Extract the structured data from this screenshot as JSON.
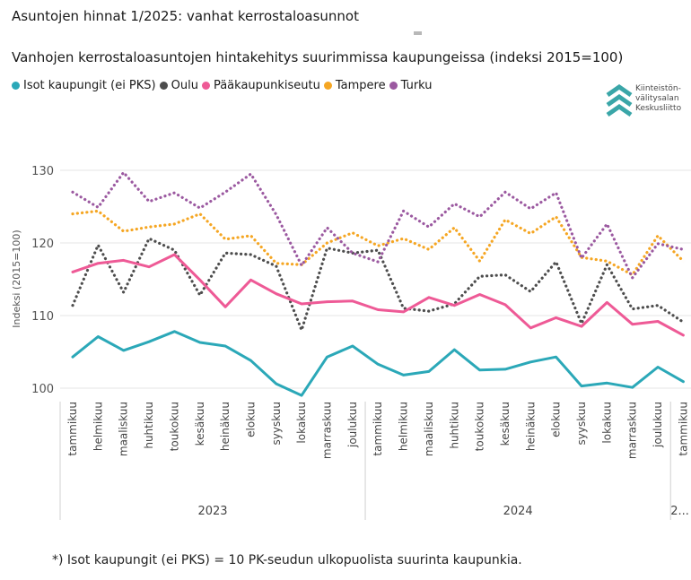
{
  "page_title": "Asuntojen hinnat 1/2025: vanhat kerrostaloasunnot",
  "footnote": "*) Isot kaupungit (ei PKS) = 10 PK-seudun ulkopuolista suurinta kaupunkia.",
  "logo": {
    "lines": [
      "Kiinteistön-",
      "välitysalan",
      "Keskusliitto"
    ],
    "color": "#3aa6a8"
  },
  "chart_data": {
    "type": "line",
    "title": "Vanhojen kerrostaloasuntojen hintakehitys suurimmissa kaupungeissa (indeksi 2015=100)",
    "ylabel": "Indeksi (2015=100)",
    "xlabel": "",
    "ylim": [
      97,
      131
    ],
    "yticks": [
      100,
      110,
      120,
      130
    ],
    "grid": true,
    "legend_position": "top-left",
    "categories": [
      "tammikuu",
      "helmikuu",
      "maaliskuu",
      "huhtikuu",
      "toukokuu",
      "kesäkuu",
      "heinäkuu",
      "elokuu",
      "syyskuu",
      "lokakuu",
      "marraskuu",
      "joulukuu",
      "tammikuu",
      "helmikuu",
      "maaliskuu",
      "huhtikuu",
      "toukokuu",
      "kesäkuu",
      "heinäkuu",
      "elokuu",
      "syyskuu",
      "lokakuu",
      "marraskuu",
      "joulukuu",
      "tammikuu"
    ],
    "year_groups": [
      {
        "label": "2023",
        "start": 0,
        "end": 11
      },
      {
        "label": "2024",
        "start": 12,
        "end": 23
      },
      {
        "label": "2...",
        "start": 24,
        "end": 24
      }
    ],
    "series": [
      {
        "name": "Isot kaupungit (ei PKS)",
        "color": "#2ba8b8",
        "style": "solid",
        "values": [
          104.3,
          107.1,
          105.2,
          106.4,
          107.8,
          106.3,
          105.8,
          103.8,
          100.6,
          99.0,
          104.3,
          105.8,
          103.3,
          101.8,
          102.3,
          105.3,
          102.5,
          102.6,
          103.6,
          104.3,
          100.3,
          100.7,
          100.1,
          102.9,
          100.9
        ]
      },
      {
        "name": "Oulu",
        "color": "#4d4d4d",
        "style": "dotted",
        "values": [
          111.4,
          119.7,
          113.2,
          120.6,
          119.0,
          112.8,
          118.6,
          118.4,
          116.8,
          108.0,
          119.3,
          118.6,
          119.0,
          111.0,
          110.6,
          111.6,
          115.4,
          115.6,
          113.3,
          117.4,
          108.9,
          117.0,
          110.9,
          111.4,
          109.1
        ]
      },
      {
        "name": "Pääkaupunkiseutu",
        "color": "#ee5a96",
        "style": "solid",
        "values": [
          116.0,
          117.2,
          117.6,
          116.7,
          118.4,
          114.9,
          111.2,
          114.9,
          113.0,
          111.6,
          111.9,
          112.0,
          110.8,
          110.5,
          112.5,
          111.4,
          112.9,
          111.5,
          108.3,
          109.7,
          108.5,
          111.8,
          108.8,
          109.2,
          107.3
        ]
      },
      {
        "name": "Tampere",
        "color": "#f5a623",
        "style": "dotted",
        "values": [
          124.0,
          124.4,
          121.6,
          122.2,
          122.6,
          124.0,
          120.5,
          121.0,
          117.2,
          117.0,
          120.0,
          121.4,
          119.6,
          120.6,
          119.1,
          122.1,
          117.5,
          123.2,
          121.3,
          123.6,
          118.0,
          117.5,
          115.6,
          121.0,
          117.5
        ]
      },
      {
        "name": "Turku",
        "color": "#9b59a0",
        "style": "dotted",
        "values": [
          127.0,
          124.9,
          129.7,
          125.7,
          126.9,
          124.8,
          127.0,
          129.5,
          123.9,
          116.9,
          122.1,
          118.6,
          117.4,
          124.4,
          122.2,
          125.4,
          123.6,
          127.0,
          124.7,
          126.9,
          117.9,
          122.6,
          115.2,
          119.9,
          119.1
        ]
      }
    ]
  }
}
